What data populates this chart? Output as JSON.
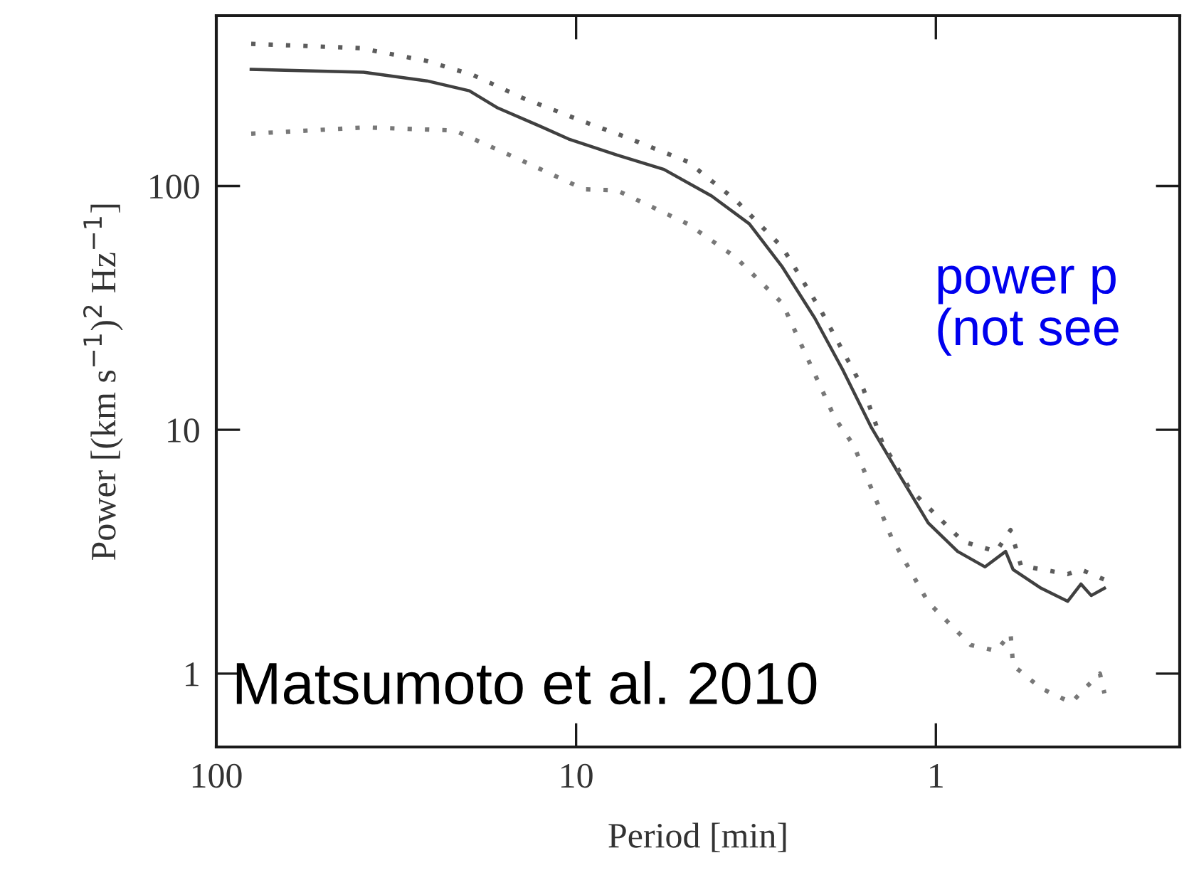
{
  "chart_data": {
    "type": "line",
    "xlabel": "Period [min]",
    "ylabel": "Power [(km s$^{−1}$)$^{2}$ Hz$^{−1}$]",
    "log": "xy",
    "xlim": [
      100,
      0.21
    ],
    "xticks": [
      100,
      10,
      1
    ],
    "ylim": [
      0.5,
      500
    ],
    "yticks": [
      1,
      10,
      100
    ],
    "grid": false,
    "legend": false,
    "marker": "none",
    "series": [
      {
        "color": "#404040",
        "line_style": "solid",
        "x": [
          80,
          39,
          26,
          19.8,
          16.5,
          12.6,
          10.5,
          7.7,
          5.7,
          4.2,
          3.3,
          2.67,
          2.17,
          1.81,
          1.51,
          1.26,
          1.05,
          0.87,
          0.73,
          0.64,
          0.61,
          0.51,
          0.43,
          0.395,
          0.37,
          0.34
        ],
        "values": [
          301,
          293,
          270,
          246,
          209,
          176,
          156,
          134,
          117,
          91,
          70,
          46.5,
          28.7,
          17.5,
          10.2,
          6.5,
          4.15,
          3.17,
          2.74,
          3.17,
          2.67,
          2.24,
          1.98,
          2.33,
          2.09,
          2.24
        ]
      },
      {
        "color": "#5c5c5c",
        "line_style": "dotted",
        "x": [
          80,
          39.9,
          26,
          19.3,
          14.1,
          9.0,
          7.7,
          4.9,
          3.6,
          2.67,
          2.09,
          1.59,
          1.41,
          1.18,
          0.84,
          0.68,
          0.62,
          0.58,
          0.43,
          0.395,
          0.34
        ],
        "values": [
          383,
          368,
          326,
          285,
          230,
          178,
          164,
          126,
          87.5,
          56,
          31,
          14.7,
          8.9,
          5.7,
          3.48,
          3.17,
          3.88,
          2.77,
          2.56,
          2.67,
          2.43
        ]
      },
      {
        "color": "#787878",
        "line_style": "dotted",
        "x": [
          80,
          38.5,
          21.7,
          19.3,
          14.1,
          9.5,
          7.7,
          4.9,
          3.6,
          2.67,
          1.91,
          1.69,
          1.33,
          1.05,
          0.8,
          0.68,
          0.62,
          0.61,
          0.51,
          0.42,
          0.385,
          0.35,
          0.34
        ],
        "values": [
          164,
          174,
          169,
          156,
          127,
          97,
          96,
          70,
          51,
          33,
          11.2,
          8.6,
          3.63,
          1.96,
          1.31,
          1.24,
          1.46,
          1.08,
          0.87,
          0.76,
          0.87,
          1.0,
          0.83
        ]
      }
    ],
    "annotations": [
      "power p\n(not see",
      "Matsumoto et al. 2010"
    ]
  }
}
